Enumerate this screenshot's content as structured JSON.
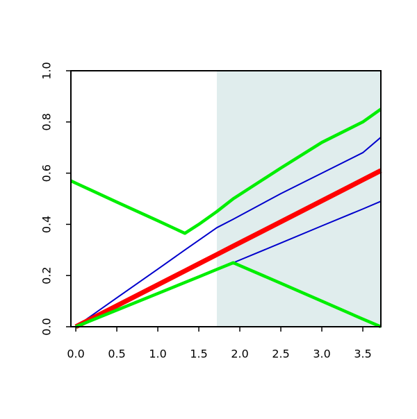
{
  "chart_data": {
    "type": "line",
    "x": [
      -0.06,
      0,
      0.5,
      1,
      1.33,
      1.5,
      1.72,
      1.92,
      2.5,
      3,
      3.5,
      3.72
    ],
    "series": [
      {
        "color": "#0000cc",
        "values": [
          null,
          0,
          0.113,
          0.225,
          0.3,
          0.338,
          0.387,
          0.42,
          0.52,
          0.6,
          0.68,
          0.74
        ]
      },
      {
        "color": "#0000cc",
        "values": [
          null,
          0,
          0.065,
          0.13,
          0.173,
          0.195,
          0.224,
          0.25,
          0.327,
          0.394,
          0.46,
          0.49
        ]
      },
      {
        "color": "#ff0000",
        "values": [
          null,
          0,
          0.082,
          0.164,
          0.218,
          0.246,
          0.282,
          0.315,
          0.41,
          0.492,
          0.574,
          0.61
        ]
      },
      {
        "color": "#00ee00",
        "values": [
          0.57,
          0.561,
          0.487,
          0.414,
          0.365,
          0.4,
          0.45,
          0.5,
          0.62,
          0.72,
          0.8,
          0.85
        ]
      },
      {
        "color": "#00ee00",
        "values": [
          null,
          0,
          0.065,
          0.13,
          0.173,
          0.195,
          0.224,
          0.25,
          0.17,
          0.1,
          0.03,
          0
        ]
      }
    ],
    "shade_from": 1.72,
    "shade_color": "#e0eded",
    "xlim": [
      -0.06,
      3.72
    ],
    "ylim": [
      0,
      1
    ],
    "xticks": [
      {
        "value": 0,
        "label": "0.0"
      },
      0.5,
      {
        "value": 1,
        "label": "1.0"
      },
      1.5,
      {
        "value": 2,
        "label": "2.0"
      },
      2.5,
      {
        "value": 3,
        "label": "3.0"
      },
      3.5
    ],
    "yticks": [
      {
        "value": 0,
        "label": "0.0"
      },
      0.2,
      0.4,
      0.6,
      0.8,
      {
        "value": 1,
        "label": "1.0"
      }
    ]
  }
}
